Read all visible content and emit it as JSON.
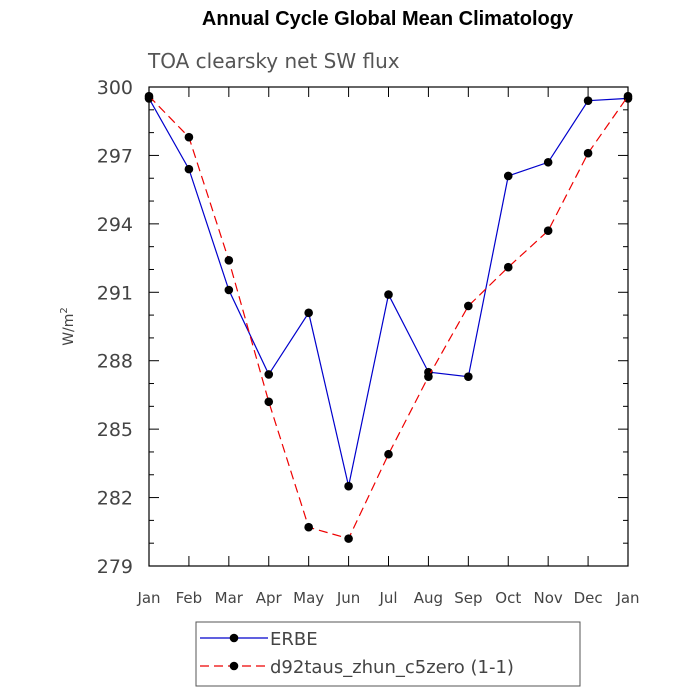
{
  "chart_data": {
    "type": "line",
    "title": "Annual Cycle Global Mean Climatology",
    "subtitle": "TOA clearsky net SW flux",
    "ylabel": "W/m",
    "ylabel_sup": "2",
    "xlabel": "",
    "categories": [
      "Jan",
      "Feb",
      "Mar",
      "Apr",
      "May",
      "Jun",
      "Jul",
      "Aug",
      "Sep",
      "Oct",
      "Nov",
      "Dec",
      "Jan"
    ],
    "ylim": [
      279,
      300
    ],
    "yticks": [
      279,
      282,
      285,
      288,
      291,
      294,
      297,
      300
    ],
    "legend_position": "bottom",
    "series": [
      {
        "name": "ERBE",
        "color": "#0000cc",
        "dash": "solid",
        "values": [
          299.5,
          296.4,
          291.1,
          287.4,
          290.1,
          282.5,
          290.9,
          287.5,
          287.3,
          296.1,
          296.7,
          299.4,
          299.5
        ]
      },
      {
        "name": "d92taus_zhun_c5zero (1-1)",
        "color": "#ee0000",
        "dash": "dashed",
        "values": [
          299.6,
          297.8,
          292.4,
          286.2,
          280.7,
          280.2,
          283.9,
          287.3,
          290.4,
          292.1,
          293.7,
          297.1,
          299.6
        ]
      }
    ]
  }
}
